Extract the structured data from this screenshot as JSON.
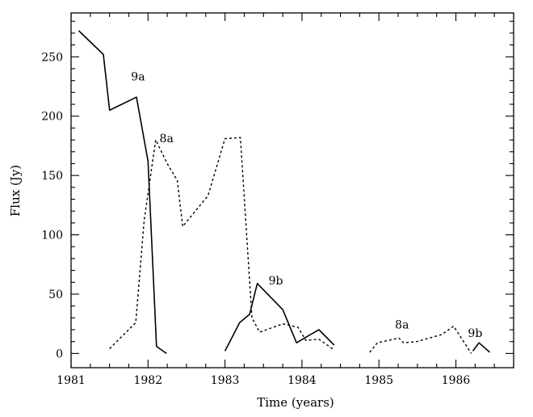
{
  "chart_data": {
    "type": "line",
    "xlabel": "Time (years)",
    "ylabel": "Flux (Jy)",
    "xlim": [
      1981,
      1986.75
    ],
    "ylim": [
      -12,
      287
    ],
    "xticks": [
      1981,
      1982,
      1983,
      1984,
      1985,
      1986
    ],
    "yticks": [
      0,
      50,
      100,
      150,
      200,
      250
    ],
    "grid": false,
    "series": [
      {
        "name": "9a",
        "style": "solid",
        "segments": [
          [
            [
              1981.1,
              272
            ],
            [
              1981.42,
              252
            ],
            [
              1981.5,
              205
            ],
            [
              1981.85,
              216
            ],
            [
              1982.0,
              162
            ],
            [
              1982.11,
              6
            ],
            [
              1982.24,
              0
            ]
          ]
        ]
      },
      {
        "name": "9b",
        "style": "solid",
        "segments": [
          [
            [
              1983.0,
              2
            ],
            [
              1983.19,
              26
            ],
            [
              1983.32,
              33
            ],
            [
              1983.42,
              59
            ],
            [
              1983.75,
              37
            ],
            [
              1983.93,
              9
            ],
            [
              1984.06,
              14
            ],
            [
              1984.22,
              20
            ],
            [
              1984.42,
              7
            ]
          ],
          [
            [
              1986.22,
              2
            ],
            [
              1986.3,
              9
            ],
            [
              1986.44,
              1
            ]
          ]
        ]
      },
      {
        "name": "8a",
        "style": "dashed",
        "segments": [
          [
            [
              1981.5,
              4
            ],
            [
              1981.84,
              26
            ],
            [
              1981.95,
              112
            ],
            [
              1982.1,
              180
            ],
            [
              1982.25,
              160
            ],
            [
              1982.38,
              146
            ],
            [
              1982.45,
              107
            ],
            [
              1982.78,
              133
            ],
            [
              1983.0,
              181
            ],
            [
              1983.2,
              182
            ],
            [
              1983.35,
              30
            ],
            [
              1983.45,
              18
            ],
            [
              1983.75,
              25
            ],
            [
              1983.95,
              22
            ],
            [
              1984.05,
              11
            ],
            [
              1984.22,
              12
            ],
            [
              1984.42,
              3
            ]
          ],
          [
            [
              1984.88,
              1
            ],
            [
              1984.98,
              9
            ],
            [
              1985.26,
              13
            ],
            [
              1985.32,
              9
            ],
            [
              1985.49,
              10
            ],
            [
              1985.82,
              16
            ],
            [
              1985.97,
              23
            ],
            [
              1986.2,
              0
            ]
          ]
        ]
      }
    ],
    "annotations": [
      {
        "text": "9a",
        "x": 1981.87,
        "y": 230
      },
      {
        "text": "8a",
        "x": 1982.24,
        "y": 178
      },
      {
        "text": "9b",
        "x": 1983.66,
        "y": 58
      },
      {
        "text": "8a",
        "x": 1985.3,
        "y": 21
      },
      {
        "text": "9b",
        "x": 1986.25,
        "y": 14
      }
    ]
  }
}
